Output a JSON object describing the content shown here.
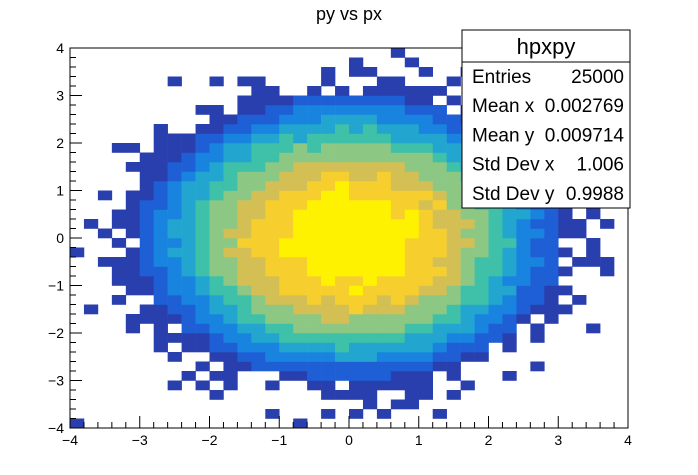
{
  "chart_data": {
    "type": "heatmap",
    "title": "py vs px",
    "xlabel": "",
    "ylabel": "",
    "xlim": [
      -4,
      4
    ],
    "ylim": [
      -4,
      4
    ],
    "x_ticks": [
      -4,
      -3,
      -2,
      -1,
      0,
      1,
      2,
      3,
      4
    ],
    "y_ticks": [
      -4,
      -3,
      -2,
      -1,
      0,
      1,
      2,
      3,
      4
    ],
    "x_tick_labels": [
      "−4",
      "−3",
      "−2",
      "−1",
      "0",
      "1",
      "2",
      "3",
      "4"
    ],
    "y_tick_labels": [
      "−4",
      "−3",
      "−2",
      "−1",
      "0",
      "1",
      "2",
      "3",
      "4"
    ],
    "bins_x": 40,
    "bins_y": 40,
    "distribution": "2D Gaussian, mean (0, 0), sigma 1 in both axes; highest density near the origin",
    "colormap": [
      "#3d2a8f",
      "#2a3fae",
      "#1f5fd6",
      "#1984e0",
      "#22a6d0",
      "#3fc0a8",
      "#8cc784",
      "#d3bf53",
      "#f6cf2f",
      "#fff200"
    ],
    "stats_box": {
      "title": "hpxpy",
      "rows": [
        {
          "label": "Entries",
          "value": "25000"
        },
        {
          "label": "Mean x",
          "value": "0.002769"
        },
        {
          "label": "Mean y",
          "value": "0.009714"
        },
        {
          "label": "Std Dev x",
          "value": "1.006"
        },
        {
          "label": "Std Dev y",
          "value": "0.9988"
        }
      ]
    }
  }
}
